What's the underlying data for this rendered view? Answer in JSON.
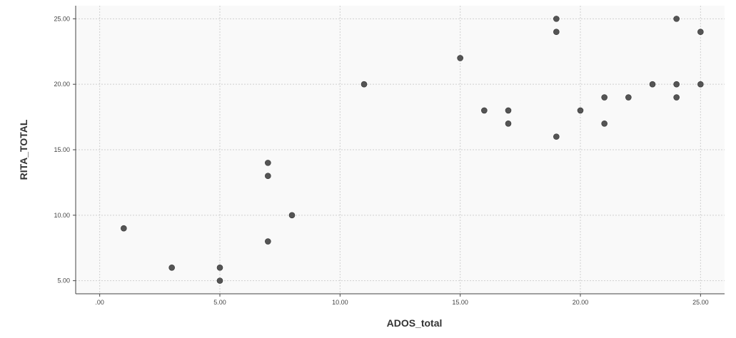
{
  "chart_data": {
    "type": "scatter",
    "title": "",
    "xlabel": "ADOS_total",
    "ylabel": "RITA_TOTAL",
    "xlim": [
      -1,
      26
    ],
    "ylim": [
      4,
      26
    ],
    "x_ticks": [
      0,
      5,
      10,
      15,
      20,
      25
    ],
    "x_tick_labels": [
      ".00",
      "5.00",
      "10.00",
      "15.00",
      "20.00",
      "25.00"
    ],
    "y_ticks": [
      5,
      10,
      15,
      20,
      25
    ],
    "y_tick_labels": [
      "5.00",
      "10.00",
      "15.00",
      "20.00",
      "25.00"
    ],
    "grid": true,
    "colors": {
      "point": "#555555",
      "grid": "#cfcfcf",
      "axis": "#444444",
      "plot_bg": "#f9f9f9"
    },
    "series": [
      {
        "points": [
          [
            1,
            9
          ],
          [
            3,
            6
          ],
          [
            5,
            6
          ],
          [
            5,
            5
          ],
          [
            7,
            14
          ],
          [
            7,
            13
          ],
          [
            7,
            8
          ],
          [
            8,
            10
          ],
          [
            11,
            20
          ],
          [
            15,
            22
          ],
          [
            16,
            18
          ],
          [
            17,
            18
          ],
          [
            17,
            17
          ],
          [
            19,
            25
          ],
          [
            19,
            24
          ],
          [
            19,
            16
          ],
          [
            20,
            18
          ],
          [
            21,
            19
          ],
          [
            21,
            17
          ],
          [
            22,
            19
          ],
          [
            23,
            20
          ],
          [
            24,
            25
          ],
          [
            24,
            20
          ],
          [
            24,
            19
          ],
          [
            25,
            24
          ],
          [
            25,
            20
          ]
        ]
      }
    ]
  }
}
